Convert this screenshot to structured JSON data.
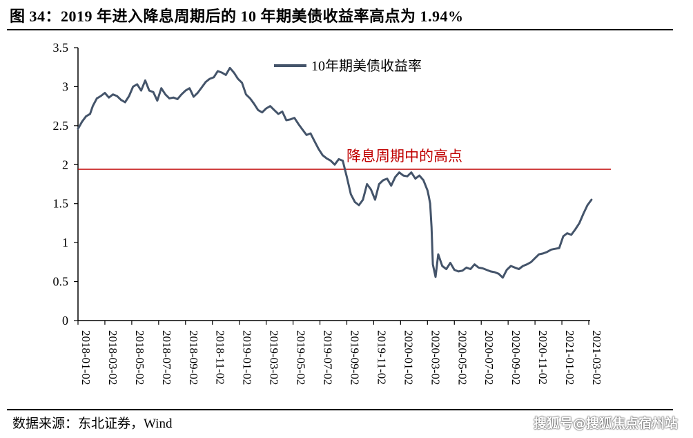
{
  "header": {
    "title": "图 34：2019 年进入降息周期后的 10 年期美债收益率高点为 1.94%"
  },
  "footer": {
    "source": "数据来源：东北证券，Wind",
    "watermark": "搜狐号@搜狐焦点宿州站"
  },
  "colors": {
    "series": "#44546A",
    "reference": "#C00000",
    "axis": "#000000",
    "annotation": "#C00000"
  },
  "chart_data": {
    "type": "line",
    "title": "",
    "xlabel": "",
    "ylabel": "",
    "ylim": [
      0,
      3.5
    ],
    "yticks": [
      0,
      0.5,
      1,
      1.5,
      2,
      2.5,
      3,
      3.5
    ],
    "ytick_labels": [
      "0",
      "0.5",
      "1",
      "1.5",
      "2",
      "2.5",
      "3",
      "3.5"
    ],
    "xtick_labels": [
      "2018-01-02",
      "2018-03-02",
      "2018-05-02",
      "2018-07-02",
      "2018-09-02",
      "2018-11-02",
      "2019-01-02",
      "2019-03-02",
      "2019-05-02",
      "2019-07-02",
      "2019-09-02",
      "2019-11-02",
      "2020-01-02",
      "2020-03-02",
      "2020-05-02",
      "2020-07-02",
      "2020-09-02",
      "2020-11-02",
      "2021-01-02",
      "2021-03-02"
    ],
    "legend": {
      "label": "10年期美债收益率",
      "position": "top-center"
    },
    "reference_line": {
      "value": 1.94,
      "label": "降息周期中的高点"
    },
    "series": [
      {
        "name": "10年期美债收益率",
        "x": [
          0,
          0.15,
          0.3,
          0.45,
          0.55,
          0.7,
          0.85,
          1.0,
          1.15,
          1.3,
          1.45,
          1.6,
          1.75,
          1.9,
          2.05,
          2.2,
          2.35,
          2.5,
          2.65,
          2.8,
          2.95,
          3.1,
          3.25,
          3.4,
          3.55,
          3.7,
          3.85,
          4.0,
          4.15,
          4.3,
          4.45,
          4.6,
          4.75,
          4.9,
          5.05,
          5.2,
          5.35,
          5.5,
          5.65,
          5.8,
          5.95,
          6.1,
          6.25,
          6.4,
          6.55,
          6.7,
          6.85,
          7.0,
          7.15,
          7.3,
          7.45,
          7.6,
          7.75,
          7.9,
          8.05,
          8.2,
          8.35,
          8.5,
          8.65,
          8.8,
          8.95,
          9.1,
          9.25,
          9.4,
          9.55,
          9.7,
          9.85,
          10.0,
          10.15,
          10.3,
          10.45,
          10.6,
          10.75,
          10.9,
          11.05,
          11.2,
          11.35,
          11.5,
          11.65,
          11.8,
          11.95,
          12.1,
          12.25,
          12.4,
          12.55,
          12.7,
          12.85,
          13.0,
          13.05,
          13.1,
          13.15,
          13.2,
          13.3,
          13.4,
          13.55,
          13.7,
          13.85,
          14.0,
          14.15,
          14.3,
          14.45,
          14.6,
          14.75,
          14.9,
          15.05,
          15.2,
          15.35,
          15.5,
          15.65,
          15.8,
          15.95,
          16.1,
          16.25,
          16.4,
          16.55,
          16.7,
          16.85,
          17.0,
          17.15,
          17.3,
          17.45,
          17.6,
          17.75,
          17.9,
          18.05,
          18.2,
          18.35,
          18.5,
          18.65,
          18.8,
          18.95,
          19.1
        ],
        "values": [
          2.46,
          2.55,
          2.62,
          2.65,
          2.75,
          2.85,
          2.88,
          2.92,
          2.86,
          2.9,
          2.88,
          2.83,
          2.8,
          2.88,
          3.0,
          3.03,
          2.95,
          3.08,
          2.95,
          2.93,
          2.82,
          2.98,
          2.9,
          2.85,
          2.86,
          2.84,
          2.9,
          2.95,
          2.98,
          2.87,
          2.92,
          2.99,
          3.06,
          3.1,
          3.12,
          3.2,
          3.18,
          3.15,
          3.24,
          3.18,
          3.1,
          3.05,
          2.9,
          2.85,
          2.78,
          2.7,
          2.67,
          2.72,
          2.75,
          2.7,
          2.65,
          2.68,
          2.57,
          2.58,
          2.6,
          2.52,
          2.45,
          2.38,
          2.4,
          2.3,
          2.2,
          2.12,
          2.08,
          2.05,
          2.0,
          2.07,
          2.05,
          1.84,
          1.62,
          1.52,
          1.48,
          1.55,
          1.75,
          1.68,
          1.55,
          1.75,
          1.8,
          1.82,
          1.73,
          1.84,
          1.9,
          1.86,
          1.85,
          1.9,
          1.82,
          1.86,
          1.8,
          1.67,
          1.59,
          1.5,
          1.2,
          0.72,
          0.56,
          0.85,
          0.7,
          0.66,
          0.74,
          0.65,
          0.63,
          0.64,
          0.68,
          0.66,
          0.72,
          0.68,
          0.67,
          0.65,
          0.63,
          0.62,
          0.6,
          0.55,
          0.65,
          0.7,
          0.68,
          0.66,
          0.7,
          0.72,
          0.75,
          0.8,
          0.85,
          0.86,
          0.88,
          0.91,
          0.92,
          0.93,
          1.08,
          1.12,
          1.1,
          1.17,
          1.25,
          1.37,
          1.48,
          1.55
        ]
      }
    ]
  }
}
